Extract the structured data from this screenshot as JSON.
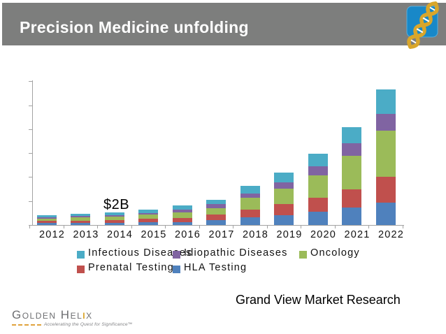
{
  "header": {
    "title": "Precision Medicine unfolding"
  },
  "chart_data": {
    "type": "bar",
    "stacked": true,
    "title": "",
    "xlabel": "",
    "ylabel": "",
    "categories": [
      "2012",
      "2013",
      "2014",
      "2015",
      "2016",
      "2017",
      "2018",
      "2019",
      "2020",
      "2021",
      "2022"
    ],
    "series": [
      {
        "name": "HLA Testing",
        "color": "#4f81bd",
        "values": [
          0.3,
          0.35,
          0.4,
          0.45,
          0.47,
          0.8,
          1.3,
          1.6,
          2.2,
          2.9,
          3.7
        ]
      },
      {
        "name": "Prenatal Testing",
        "color": "#c0504d",
        "values": [
          0.35,
          0.4,
          0.45,
          0.55,
          0.7,
          0.9,
          1.3,
          1.9,
          2.3,
          3.1,
          4.4
        ]
      },
      {
        "name": "Oncology",
        "color": "#9bbb59",
        "values": [
          0.45,
          0.5,
          0.55,
          0.7,
          0.93,
          1.05,
          1.9,
          2.6,
          3.8,
          5.6,
          7.6
        ]
      },
      {
        "name": "Idiopathic Diseases",
        "color": "#8064a2",
        "values": [
          0.22,
          0.25,
          0.27,
          0.33,
          0.47,
          0.7,
          0.8,
          1.0,
          1.5,
          2.0,
          2.9
        ]
      },
      {
        "name": "Infectious Diseases",
        "color": "#4bacc6",
        "values": [
          0.31,
          0.36,
          0.4,
          0.5,
          0.7,
          0.8,
          1.2,
          1.6,
          2.1,
          2.7,
          4.0
        ]
      }
    ],
    "ylim": [
      0,
      24
    ],
    "y_tick_interval": 4,
    "grid": false,
    "legend_position": "bottom",
    "legend_rows": [
      [
        "Infectious Diseases",
        "Idiopathic Diseases",
        "Oncology"
      ],
      [
        "Prenatal Testing",
        "HLA Testing"
      ]
    ],
    "annotation": {
      "text": "$2B",
      "category": "2014"
    }
  },
  "footer": {
    "source": "Grand View Market Research"
  },
  "logo": {
    "badge_icon": "dna-helix-icon",
    "wordmark": "Golden Helix",
    "tagline": "Accelerating the Quest for Significance™"
  },
  "colors": {
    "header_bar": "#7d7e7d",
    "title_text": "#ffffff",
    "axis": "#a3a3a3",
    "badge_blue": "#1888c8",
    "helix_gold": "#d9a62b",
    "logo_gray": "#6d6e71",
    "logo_accent_orange": "#dba426"
  }
}
